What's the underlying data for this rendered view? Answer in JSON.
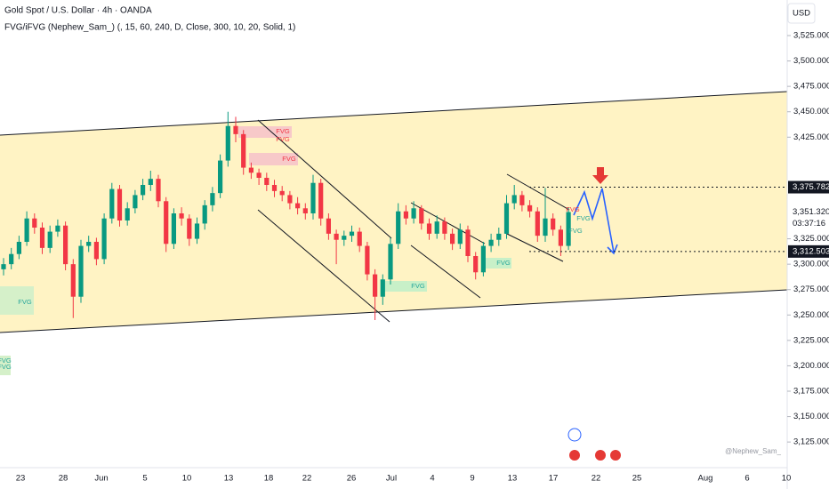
{
  "chart_data": {
    "type": "candlestick",
    "title": "Gold Spot / U.S. Dollar · 4h · OANDA",
    "subtitle": "FVG/iFVG (Nephew_Sam_) (, 15, 60, 240, D, Close, 300, 10, 20, Solid, 1)",
    "currency": "USD",
    "watermark": "@Nephew_Sam_",
    "up_color": "#089981",
    "down_color": "#f23645",
    "open": [
      3295,
      3300,
      3310,
      3322,
      3345,
      3336,
      3316,
      3332,
      3338,
      3300,
      3268,
      3318,
      3322,
      3305,
      3345,
      3374,
      3343,
      3355,
      3368,
      3378,
      3384,
      3362,
      3320,
      3350,
      3345,
      3325,
      3340,
      3358,
      3370,
      3402,
      3436,
      3428,
      3395,
      3390,
      3385,
      3378,
      3372,
      3368,
      3360,
      3355,
      3350,
      3380,
      3345,
      3330,
      3324,
      3328,
      3332,
      3318,
      3290,
      3268,
      3285,
      3320,
      3352,
      3345,
      3355,
      3340,
      3330,
      3342,
      3330,
      3320,
      3334,
      3308,
      3292,
      3318,
      3324,
      3330,
      3360,
      3368,
      3358,
      3352,
      3328,
      3345,
      3334,
      3318
    ],
    "high": [
      3306,
      3316,
      3328,
      3352,
      3350,
      3341,
      3338,
      3344,
      3342,
      3305,
      3324,
      3328,
      3326,
      3350,
      3380,
      3378,
      3361,
      3373,
      3384,
      3392,
      3388,
      3366,
      3355,
      3356,
      3349,
      3346,
      3363,
      3376,
      3408,
      3450,
      3445,
      3432,
      3400,
      3394,
      3390,
      3383,
      3377,
      3372,
      3366,
      3360,
      3388,
      3384,
      3350,
      3334,
      3333,
      3338,
      3336,
      3322,
      3295,
      3290,
      3326,
      3360,
      3358,
      3362,
      3358,
      3345,
      3348,
      3346,
      3335,
      3340,
      3338,
      3312,
      3322,
      3330,
      3336,
      3368,
      3378,
      3372,
      3363,
      3356,
      3375,
      3350,
      3338,
      3356
    ],
    "low": [
      3289,
      3295,
      3305,
      3318,
      3330,
      3310,
      3311,
      3327,
      3294,
      3247,
      3262,
      3312,
      3299,
      3300,
      3340,
      3337,
      3338,
      3350,
      3363,
      3372,
      3356,
      3312,
      3315,
      3338,
      3318,
      3320,
      3334,
      3352,
      3365,
      3396,
      3420,
      3388,
      3384,
      3378,
      3372,
      3366,
      3362,
      3354,
      3349,
      3344,
      3344,
      3338,
      3324,
      3300,
      3318,
      3322,
      3312,
      3284,
      3245,
      3260,
      3280,
      3315,
      3339,
      3340,
      3334,
      3324,
      3325,
      3324,
      3314,
      3315,
      3302,
      3285,
      3288,
      3312,
      3318,
      3325,
      3354,
      3352,
      3346,
      3322,
      3322,
      3328,
      3308,
      3314
    ],
    "close": [
      3300,
      3310,
      3322,
      3345,
      3336,
      3316,
      3332,
      3338,
      3300,
      3268,
      3318,
      3322,
      3305,
      3345,
      3374,
      3343,
      3355,
      3368,
      3378,
      3384,
      3362,
      3320,
      3350,
      3345,
      3325,
      3340,
      3358,
      3370,
      3402,
      3436,
      3428,
      3395,
      3390,
      3385,
      3378,
      3372,
      3368,
      3360,
      3355,
      3350,
      3380,
      3345,
      3330,
      3324,
      3328,
      3332,
      3318,
      3290,
      3268,
      3285,
      3320,
      3352,
      3345,
      3355,
      3340,
      3330,
      3342,
      3330,
      3320,
      3334,
      3308,
      3292,
      3318,
      3324,
      3330,
      3360,
      3368,
      3358,
      3352,
      3328,
      3345,
      3334,
      3318,
      3351.32
    ],
    "ylim": [
      3105,
      3560
    ],
    "yticks": [
      {
        "value": 3125,
        "label": "3,125.000"
      },
      {
        "value": 3150,
        "label": "3,150.000"
      },
      {
        "value": 3175,
        "label": "3,175.000"
      },
      {
        "value": 3200,
        "label": "3,200.000"
      },
      {
        "value": 3225,
        "label": "3,225.000"
      },
      {
        "value": 3250,
        "label": "3,250.000"
      },
      {
        "value": 3275,
        "label": "3,275.000"
      },
      {
        "value": 3300,
        "label": "3,300.000"
      },
      {
        "value": 3325,
        "label": "3,325.000"
      },
      {
        "value": 3425,
        "label": "3,425.000"
      },
      {
        "value": 3450,
        "label": "3,450.000"
      },
      {
        "value": 3475,
        "label": "3,475.000"
      },
      {
        "value": 3500,
        "label": "3,500.000"
      },
      {
        "value": 3525,
        "label": "3,525.000"
      }
    ],
    "xticks": [
      "23",
      "28",
      "Jun",
      "5",
      "10",
      "13",
      "18",
      "22",
      "26",
      "Jul",
      "4",
      "9",
      "13",
      "17",
      "22",
      "25",
      "Aug",
      "6",
      "10"
    ],
    "levels": [
      {
        "value": 3375.782,
        "label": "3,375.782",
        "color": "#131722"
      },
      {
        "value": 3351.32,
        "label": "3,351.320",
        "color": "#ffffff"
      },
      {
        "value": 3312.503,
        "label": "3,312.503",
        "color": "#131722"
      }
    ],
    "countdown": "03:37:16",
    "fvg_labels": [
      "FVG",
      "FVG",
      "FVG",
      "FVG",
      "FVG",
      "FVG",
      "FVG",
      "FVG",
      "FVG",
      "FVG",
      "FVG"
    ]
  }
}
